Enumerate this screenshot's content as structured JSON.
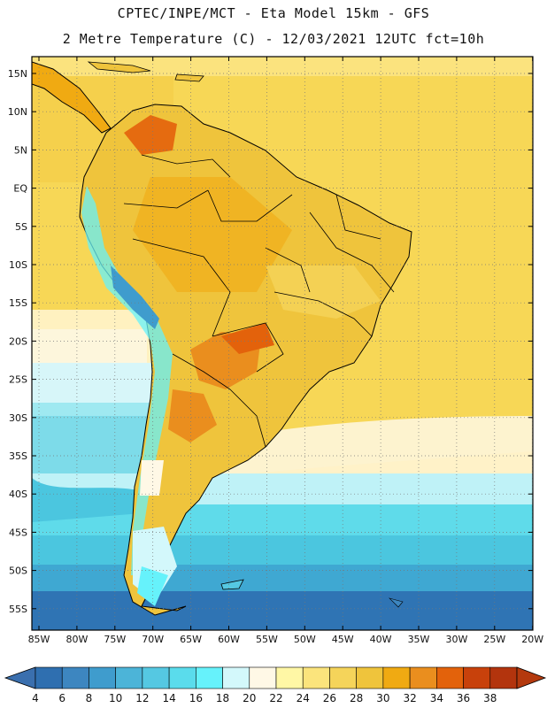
{
  "header": {
    "line1": "CPTEC/INPE/MCT -  Eta Model 15km - GFS",
    "line2": "2 Metre Temperature (C) - 12/03/2021 12UTC fct=10h"
  },
  "axes": {
    "lat_labels": [
      "15N",
      "10N",
      "5N",
      "EQ",
      "5S",
      "10S",
      "15S",
      "20S",
      "25S",
      "30S",
      "35S",
      "40S",
      "45S",
      "50S",
      "55S"
    ],
    "lon_labels": [
      "85W",
      "80W",
      "75W",
      "70W",
      "65W",
      "60W",
      "55W",
      "50W",
      "45W",
      "40W",
      "35W",
      "30W",
      "25W",
      "20W"
    ]
  },
  "colorbar": {
    "values": [
      "4",
      "6",
      "8",
      "10",
      "12",
      "14",
      "16",
      "18",
      "20",
      "22",
      "24",
      "26",
      "28",
      "30",
      "32",
      "34",
      "36",
      "38"
    ],
    "colors": [
      "#2f6fb0",
      "#3d86c0",
      "#3f9ccd",
      "#4cb4d8",
      "#55c8e2",
      "#5adcec",
      "#66f2fb",
      "#d3f8fb",
      "#fff8e6",
      "#fff7a5",
      "#fbe47c",
      "#f5d45a",
      "#efc43c",
      "#f0aa12",
      "#ea8e1e",
      "#e3620b",
      "#c8410b",
      "#b3340d"
    ],
    "low_arrow_color": "#3a6fae",
    "high_arrow_color": "#b4390d"
  }
}
